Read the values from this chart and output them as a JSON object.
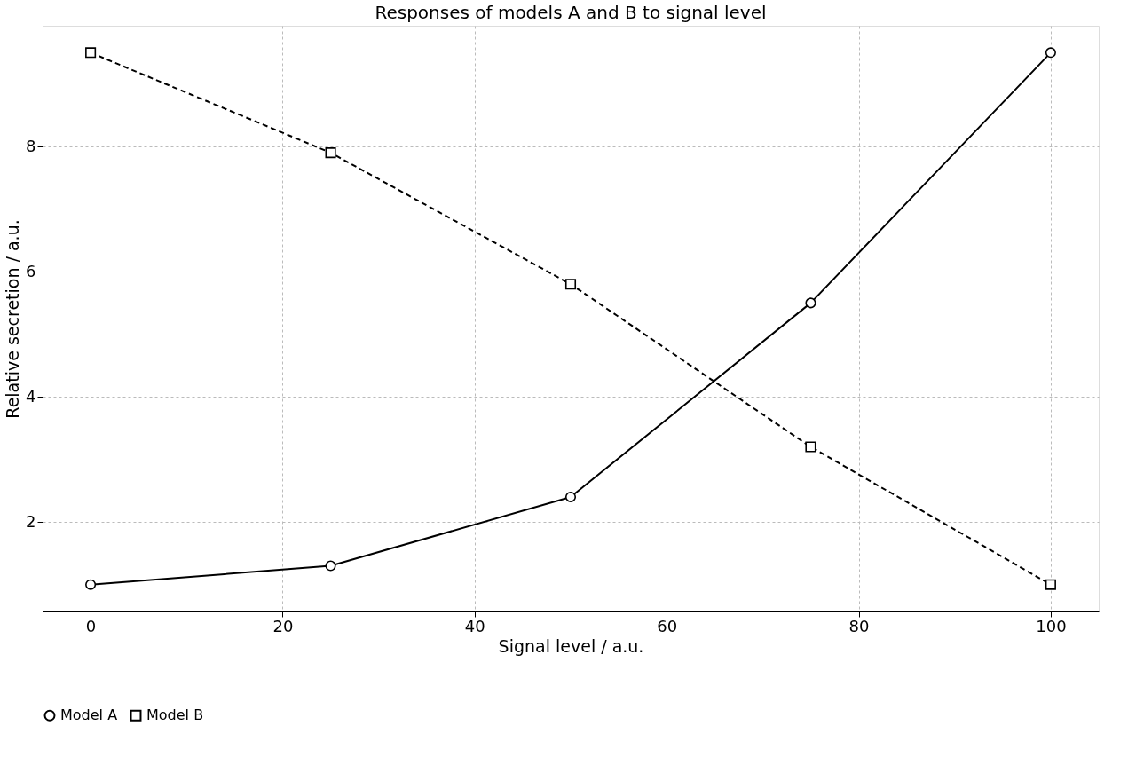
{
  "chart_data": {
    "type": "line",
    "title": "Responses of models A and B to signal level",
    "xlabel": "Signal level / a.u.",
    "ylabel": "Relative secretion / a.u.",
    "x": [
      0,
      25,
      50,
      75,
      100
    ],
    "series": [
      {
        "name": "Model A",
        "color": "#000000",
        "values": [
          1.0,
          1.3,
          2.4,
          5.5,
          9.5
        ],
        "marker": "circle",
        "line_style": "solid"
      },
      {
        "name": "Model B",
        "color": "#000000",
        "values": [
          9.5,
          7.9,
          5.8,
          3.2,
          1.0
        ],
        "marker": "square",
        "line_style": "dashed"
      }
    ],
    "xlim": [
      -5,
      105
    ],
    "xticks": [
      0,
      20,
      40,
      60,
      80,
      100
    ],
    "ylim": [
      0.57,
      9.93
    ],
    "yticks": [
      2,
      4,
      6,
      8
    ],
    "grid": true,
    "legend": "bottom"
  }
}
